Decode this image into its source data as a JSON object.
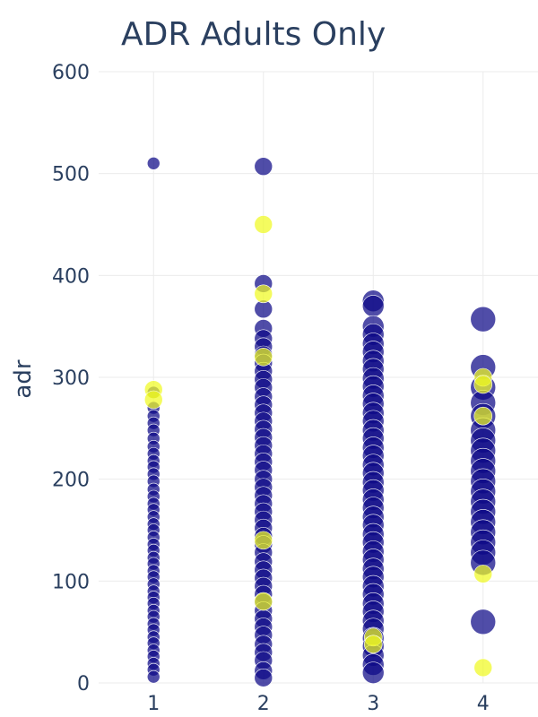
{
  "chart_data": {
    "type": "scatter",
    "title": "ADR Adults Only",
    "xlabel": "",
    "ylabel": "adr",
    "xlim": [
      0.5,
      4.5
    ],
    "ylim": [
      0,
      600
    ],
    "x_ticks": [
      1,
      2,
      3,
      4
    ],
    "y_ticks": [
      0,
      100,
      200,
      300,
      400,
      500,
      600
    ],
    "grid": true,
    "legend": "none",
    "colors": {
      "primary": "#0d0887",
      "secondary": "#f0f921"
    },
    "series": [
      {
        "color": "#0d0887",
        "size": 7,
        "points": [
          [
            1,
            510
          ],
          [
            1,
            285
          ],
          [
            1,
            270
          ],
          [
            1,
            262
          ],
          [
            1,
            255
          ],
          [
            1,
            248
          ],
          [
            1,
            240
          ],
          [
            1,
            232
          ],
          [
            1,
            225
          ],
          [
            1,
            218
          ],
          [
            1,
            212
          ],
          [
            1,
            205
          ],
          [
            1,
            198
          ],
          [
            1,
            190
          ],
          [
            1,
            183
          ],
          [
            1,
            176
          ],
          [
            1,
            170
          ],
          [
            1,
            163
          ],
          [
            1,
            156
          ],
          [
            1,
            150
          ],
          [
            1,
            143
          ],
          [
            1,
            136
          ],
          [
            1,
            130
          ],
          [
            1,
            123
          ],
          [
            1,
            117
          ],
          [
            1,
            110
          ],
          [
            1,
            104
          ],
          [
            1,
            97
          ],
          [
            1,
            90
          ],
          [
            1,
            84
          ],
          [
            1,
            78
          ],
          [
            1,
            71
          ],
          [
            1,
            65
          ],
          [
            1,
            58
          ],
          [
            1,
            52
          ],
          [
            1,
            45
          ],
          [
            1,
            39
          ],
          [
            1,
            32
          ],
          [
            1,
            26
          ],
          [
            1,
            19
          ],
          [
            1,
            13
          ],
          [
            1,
            6
          ]
        ]
      },
      {
        "color": "#0d0887",
        "size": 10,
        "points": [
          [
            2,
            507
          ],
          [
            2,
            392
          ],
          [
            2,
            367
          ],
          [
            2,
            348
          ],
          [
            2,
            338
          ],
          [
            2,
            330
          ],
          [
            2,
            322
          ],
          [
            2,
            314
          ],
          [
            2,
            306
          ],
          [
            2,
            298
          ],
          [
            2,
            290
          ],
          [
            2,
            281
          ],
          [
            2,
            273
          ],
          [
            2,
            265
          ],
          [
            2,
            257
          ],
          [
            2,
            249
          ],
          [
            2,
            241
          ],
          [
            2,
            233
          ],
          [
            2,
            225
          ],
          [
            2,
            217
          ],
          [
            2,
            209
          ],
          [
            2,
            200
          ],
          [
            2,
            192
          ],
          [
            2,
            184
          ],
          [
            2,
            176
          ],
          [
            2,
            168
          ],
          [
            2,
            160
          ],
          [
            2,
            152
          ],
          [
            2,
            144
          ],
          [
            2,
            136
          ],
          [
            2,
            128
          ],
          [
            2,
            119
          ],
          [
            2,
            111
          ],
          [
            2,
            103
          ],
          [
            2,
            95
          ],
          [
            2,
            87
          ],
          [
            2,
            79
          ],
          [
            2,
            71
          ],
          [
            2,
            63
          ],
          [
            2,
            55
          ],
          [
            2,
            47
          ],
          [
            2,
            38
          ],
          [
            2,
            30
          ],
          [
            2,
            22
          ],
          [
            2,
            12
          ],
          [
            2,
            5
          ]
        ]
      },
      {
        "color": "#0d0887",
        "size": 12,
        "points": [
          [
            3,
            375
          ],
          [
            3,
            370
          ],
          [
            3,
            350
          ],
          [
            3,
            342
          ],
          [
            3,
            333
          ],
          [
            3,
            325
          ],
          [
            3,
            316
          ],
          [
            3,
            308
          ],
          [
            3,
            299
          ],
          [
            3,
            291
          ],
          [
            3,
            282
          ],
          [
            3,
            274
          ],
          [
            3,
            265
          ],
          [
            3,
            257
          ],
          [
            3,
            248
          ],
          [
            3,
            240
          ],
          [
            3,
            231
          ],
          [
            3,
            223
          ],
          [
            3,
            214
          ],
          [
            3,
            206
          ],
          [
            3,
            197
          ],
          [
            3,
            189
          ],
          [
            3,
            180
          ],
          [
            3,
            172
          ],
          [
            3,
            163
          ],
          [
            3,
            155
          ],
          [
            3,
            146
          ],
          [
            3,
            138
          ],
          [
            3,
            129
          ],
          [
            3,
            121
          ],
          [
            3,
            112
          ],
          [
            3,
            104
          ],
          [
            3,
            95
          ],
          [
            3,
            87
          ],
          [
            3,
            78
          ],
          [
            3,
            70
          ],
          [
            3,
            61
          ],
          [
            3,
            53
          ],
          [
            3,
            44
          ],
          [
            3,
            36
          ],
          [
            3,
            27
          ],
          [
            3,
            18
          ],
          [
            3,
            10
          ]
        ]
      },
      {
        "color": "#0d0887",
        "size": 14,
        "points": [
          [
            4,
            357
          ],
          [
            4,
            310
          ],
          [
            4,
            290
          ],
          [
            4,
            275
          ],
          [
            4,
            262
          ],
          [
            4,
            248
          ],
          [
            4,
            238
          ],
          [
            4,
            228
          ],
          [
            4,
            218
          ],
          [
            4,
            208
          ],
          [
            4,
            198
          ],
          [
            4,
            188
          ],
          [
            4,
            178
          ],
          [
            4,
            168
          ],
          [
            4,
            158
          ],
          [
            4,
            148
          ],
          [
            4,
            138
          ],
          [
            4,
            128
          ],
          [
            4,
            118
          ],
          [
            4,
            60
          ]
        ]
      },
      {
        "color": "#f0f921",
        "size": 10,
        "points": [
          [
            1,
            288
          ],
          [
            1,
            278
          ],
          [
            2,
            450
          ],
          [
            2,
            382
          ],
          [
            2,
            320
          ],
          [
            2,
            140
          ],
          [
            2,
            80
          ],
          [
            3,
            45
          ],
          [
            3,
            38
          ],
          [
            4,
            300
          ],
          [
            4,
            293
          ],
          [
            4,
            262
          ],
          [
            4,
            107
          ],
          [
            4,
            15
          ]
        ]
      }
    ]
  }
}
